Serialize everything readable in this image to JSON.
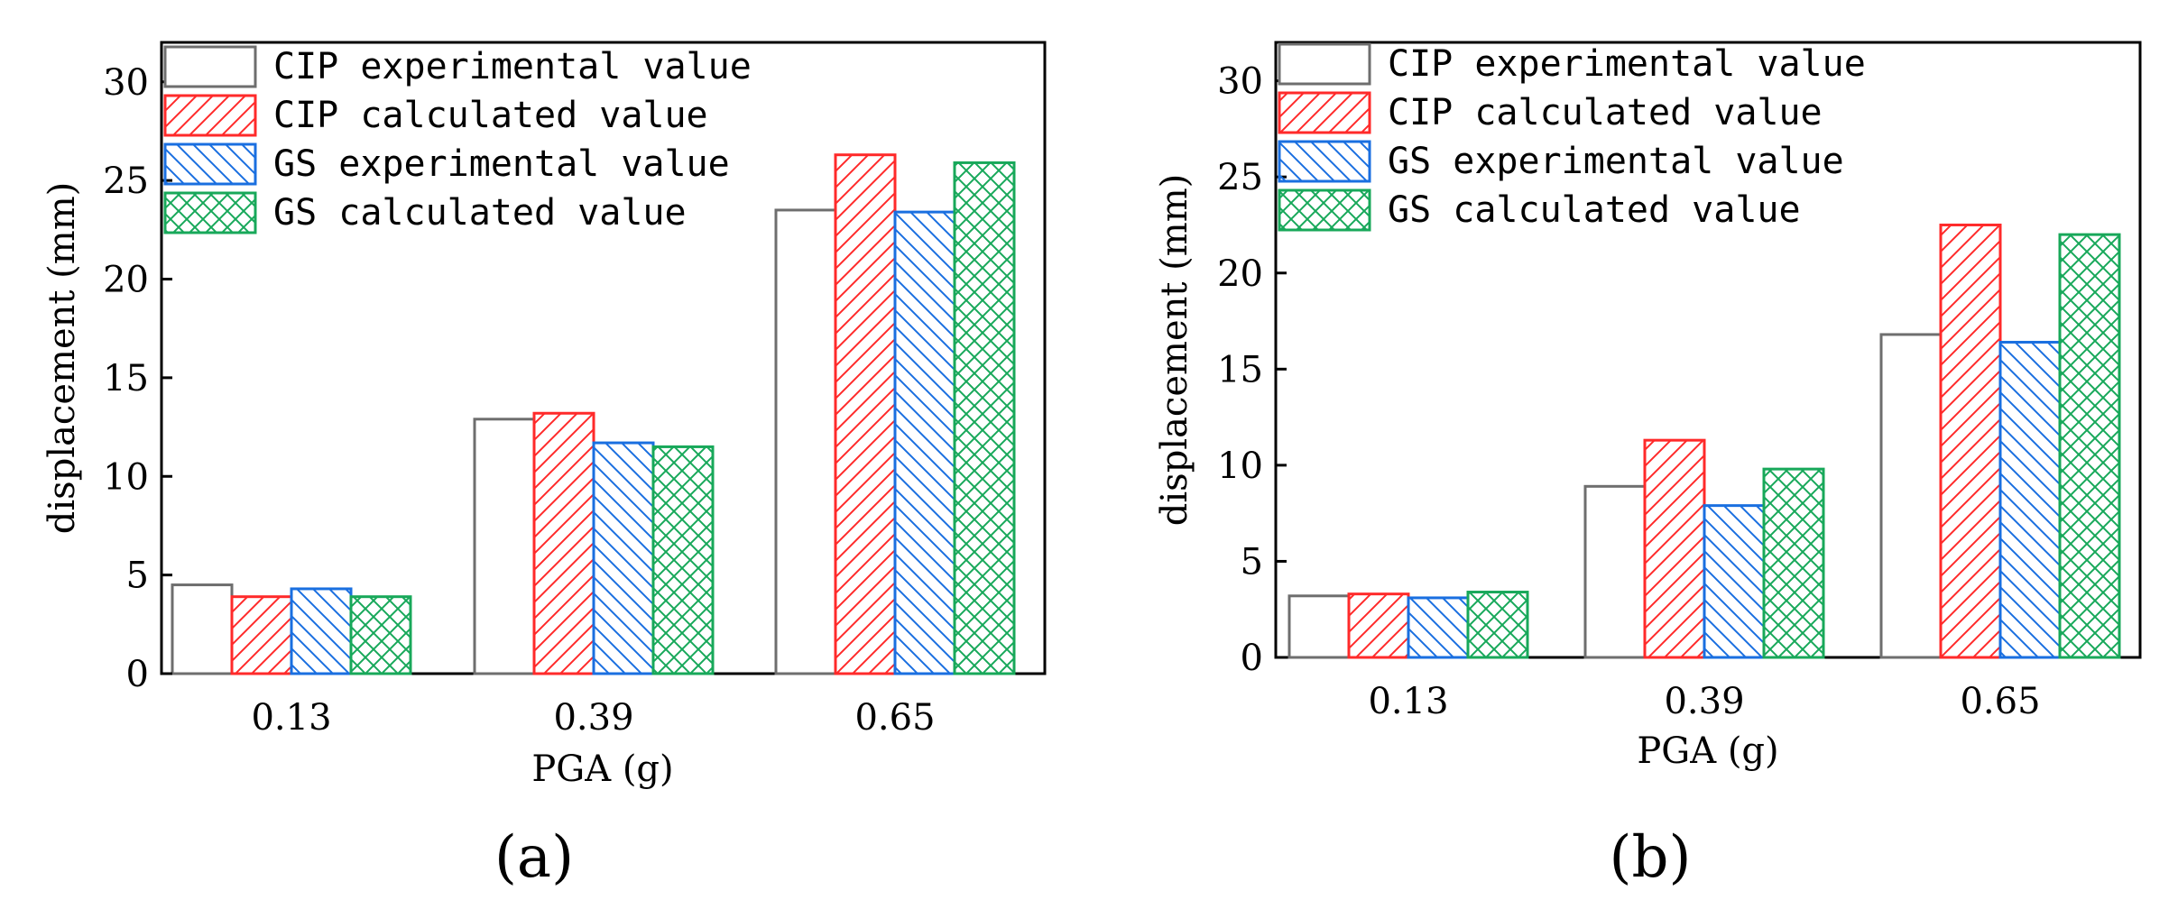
{
  "colors": {
    "cip_exp": "#6e6e6e",
    "cip_calc": "#ff2a2a",
    "gs_exp": "#1a6fe0",
    "gs_calc": "#18a85a"
  },
  "chart_data": [
    {
      "type": "bar",
      "panel_label": "(a)",
      "categories": [
        "0.13",
        "0.39",
        "0.65"
      ],
      "xlabel": "PGA (g)",
      "ylabel": "displacement (mm)",
      "ylim": [
        0,
        32
      ],
      "yticks": [
        "0",
        "5",
        "10",
        "15",
        "20",
        "25",
        "30"
      ],
      "legend_position": "top-left",
      "series": [
        {
          "name": "CIP experimental value",
          "key": "cip_exp",
          "pattern": "none",
          "values": [
            4.5,
            12.9,
            23.5
          ]
        },
        {
          "name": "CIP calculated value",
          "key": "cip_calc",
          "pattern": "diag-up",
          "values": [
            3.9,
            13.2,
            26.3
          ]
        },
        {
          "name": "GS experimental value",
          "key": "gs_exp",
          "pattern": "diag-down",
          "values": [
            4.3,
            11.7,
            23.4
          ]
        },
        {
          "name": "GS calculated value",
          "key": "gs_calc",
          "pattern": "cross",
          "values": [
            3.9,
            11.5,
            25.9
          ]
        }
      ]
    },
    {
      "type": "bar",
      "panel_label": "(b)",
      "categories": [
        "0.13",
        "0.39",
        "0.65"
      ],
      "xlabel": "PGA (g)",
      "ylabel": "displacement (mm)",
      "ylim": [
        0,
        32
      ],
      "yticks": [
        "0",
        "5",
        "10",
        "15",
        "20",
        "25",
        "30"
      ],
      "legend_position": "top-left",
      "series": [
        {
          "name": "CIP experimental value",
          "key": "cip_exp",
          "pattern": "none",
          "values": [
            3.2,
            8.9,
            16.8
          ]
        },
        {
          "name": "CIP calculated value",
          "key": "cip_calc",
          "pattern": "diag-up",
          "values": [
            3.3,
            11.3,
            22.5
          ]
        },
        {
          "name": "GS experimental value",
          "key": "gs_exp",
          "pattern": "diag-down",
          "values": [
            3.1,
            7.9,
            16.4
          ]
        },
        {
          "name": "GS calculated value",
          "key": "gs_calc",
          "pattern": "cross",
          "values": [
            3.4,
            9.8,
            22.0
          ]
        }
      ]
    }
  ]
}
